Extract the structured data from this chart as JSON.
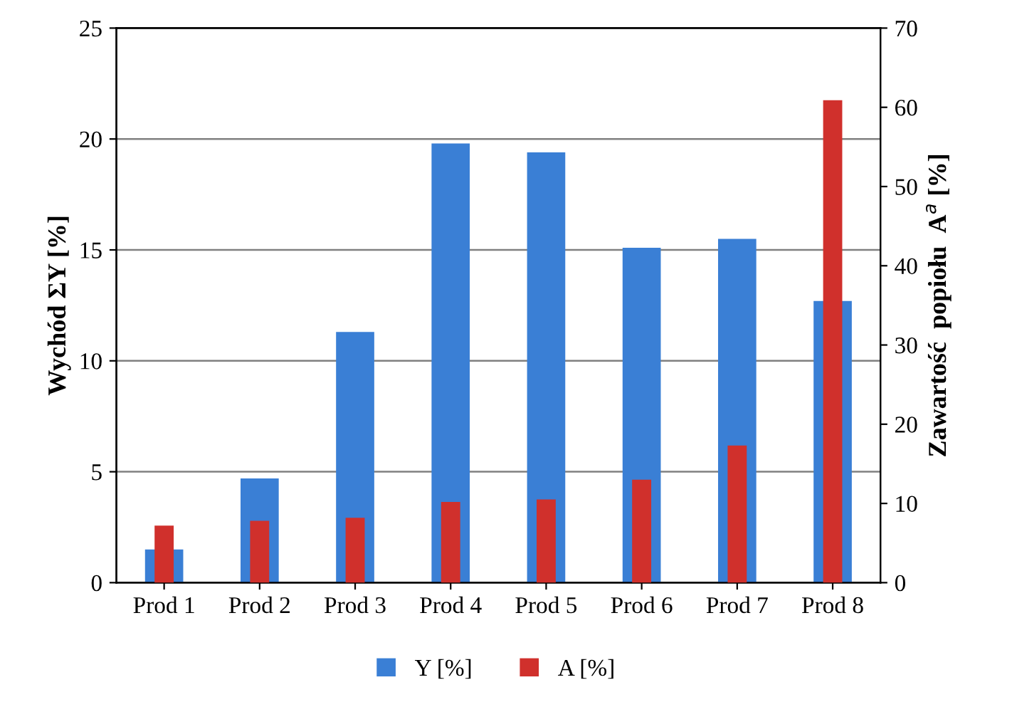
{
  "chart_data": {
    "type": "bar",
    "categories": [
      "Prod 1",
      "Prod 2",
      "Prod 3",
      "Prod 4",
      "Prod 5",
      "Prod 6",
      "Prod 7",
      "Prod 8"
    ],
    "series": [
      {
        "name": "Y [%]",
        "color": "#3a7fd5",
        "values": [
          1.5,
          4.7,
          11.3,
          19.8,
          19.4,
          15.1,
          15.5,
          12.7
        ]
      },
      {
        "name": "A [%]",
        "color": "#d0302c",
        "axis": "y2",
        "values": [
          7.2,
          7.8,
          8.2,
          10.2,
          10.5,
          13.0,
          17.3,
          60.9
        ]
      }
    ],
    "ylabel": "Wychód ΣY [%]",
    "y2label": "Zawartość  popiołu  A$^{a}$ [%]",
    "ylim": [
      0,
      25
    ],
    "yticks": [
      0,
      5,
      10,
      15,
      20,
      25
    ],
    "y2lim": [
      0,
      70
    ],
    "y2ticks": [
      0,
      10,
      20,
      30,
      40,
      50,
      60,
      70
    ],
    "grid": "y",
    "legend": "bottom"
  }
}
